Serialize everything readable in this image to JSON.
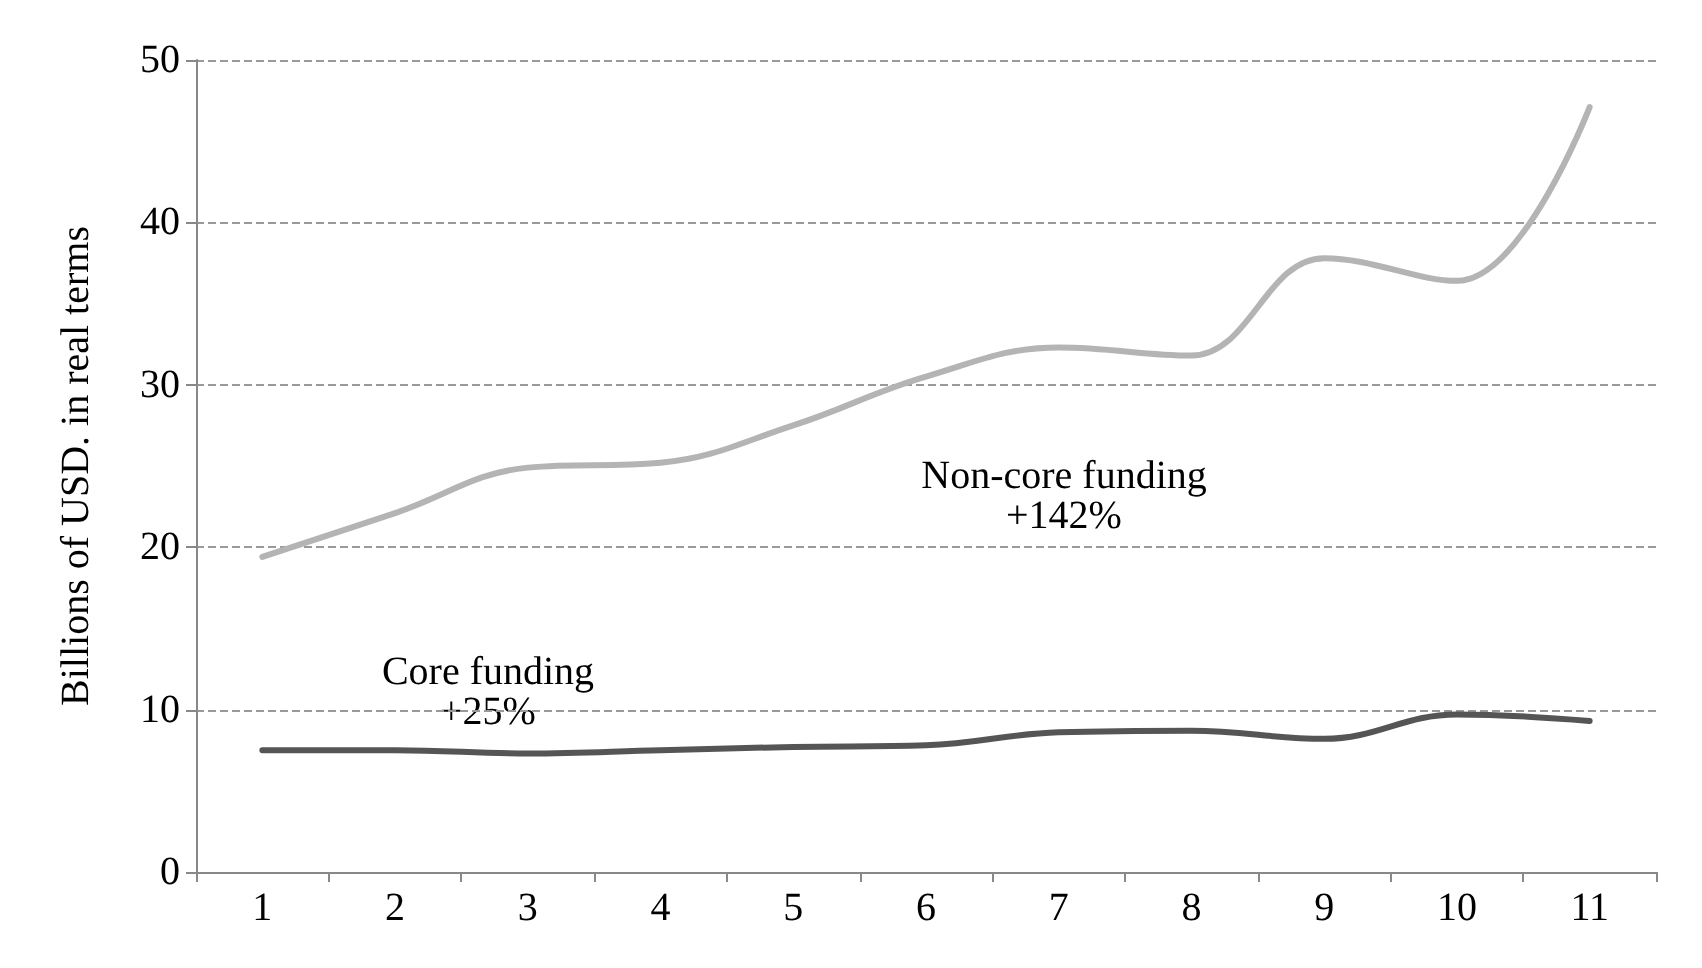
{
  "chart_data": {
    "type": "line",
    "ylabel": "Billions of USD. in real terms",
    "categories": [
      "1",
      "2",
      "3",
      "4",
      "5",
      "6",
      "7",
      "8",
      "9",
      "10",
      "11"
    ],
    "series": [
      {
        "color": "#b4b4b4",
        "values": [
          19.4,
          22.1,
          24.9,
          25.2,
          27.5,
          30.5,
          32.3,
          31.8,
          37.8,
          36.4,
          47.1
        ]
      },
      {
        "color": "#555555",
        "values": [
          7.5,
          7.5,
          7.3,
          7.5,
          7.7,
          7.8,
          8.6,
          8.7,
          8.2,
          9.7,
          9.3
        ]
      }
    ],
    "annotations": [
      "Non-core funding\n+142%",
      "Core funding\n+25%"
    ],
    "ylim": [
      0,
      50
    ],
    "yticks": [
      0,
      10,
      20,
      30,
      40,
      50
    ],
    "grid": "y",
    "marker": "none",
    "line_style": "solid"
  }
}
